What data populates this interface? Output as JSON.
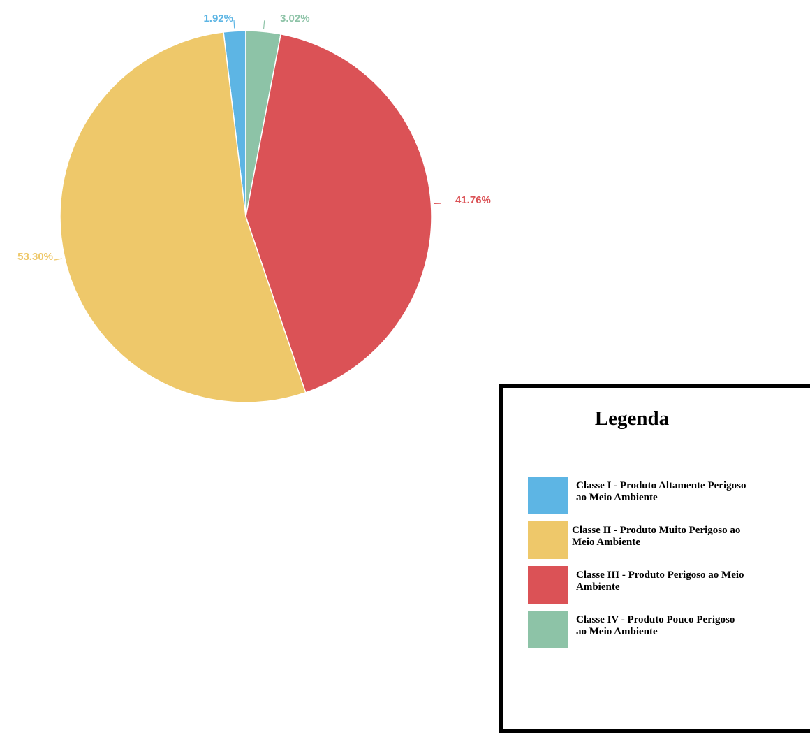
{
  "chart_data": {
    "type": "pie",
    "slices": [
      {
        "label": "1.92%",
        "value": 1.92,
        "color": "#5db5e4"
      },
      {
        "label": "3.02%",
        "value": 3.02,
        "color": "#8dc3a7"
      },
      {
        "label": "41.76%",
        "value": 41.76,
        "color": "#db5256"
      },
      {
        "label": "53.30%",
        "value": 53.3,
        "color": "#eec86a"
      }
    ]
  },
  "legend": {
    "title": "Legenda",
    "items": [
      {
        "line1": "Classe I - Produto Altamente Perigoso",
        "line2": "ao Meio Ambiente",
        "color": "#5db5e4"
      },
      {
        "line1": "Classe II - Produto Muito Perigoso ao",
        "line2": "Meio Ambiente",
        "color": "#eec86a"
      },
      {
        "line1": "Classe III - Produto Perigoso ao Meio",
        "line2": "Ambiente",
        "color": "#db5256"
      },
      {
        "line1": "Classe IV - Produto Pouco Perigoso",
        "line2": "ao Meio Ambiente",
        "color": "#8dc3a7"
      }
    ]
  }
}
